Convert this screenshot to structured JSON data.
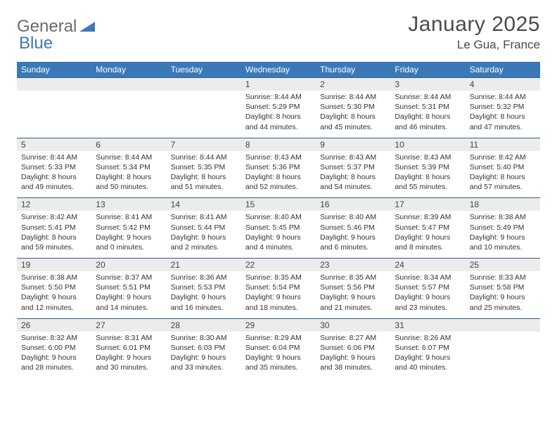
{
  "logo": {
    "text1": "General",
    "text2": "Blue"
  },
  "title": "January 2025",
  "location": "Le Gua, France",
  "colors": {
    "header_bg": "#3b78b8",
    "header_text": "#ffffff",
    "daynum_bg": "#ececec",
    "rule": "#2f5f94",
    "text": "#333333",
    "logo_gray": "#6a6a6a",
    "logo_blue": "#3b78b8"
  },
  "weekdays": [
    "Sunday",
    "Monday",
    "Tuesday",
    "Wednesday",
    "Thursday",
    "Friday",
    "Saturday"
  ],
  "weeks": [
    [
      null,
      null,
      null,
      {
        "n": "1",
        "sr": "Sunrise: 8:44 AM",
        "ss": "Sunset: 5:29 PM",
        "d1": "Daylight: 8 hours",
        "d2": "and 44 minutes."
      },
      {
        "n": "2",
        "sr": "Sunrise: 8:44 AM",
        "ss": "Sunset: 5:30 PM",
        "d1": "Daylight: 8 hours",
        "d2": "and 45 minutes."
      },
      {
        "n": "3",
        "sr": "Sunrise: 8:44 AM",
        "ss": "Sunset: 5:31 PM",
        "d1": "Daylight: 8 hours",
        "d2": "and 46 minutes."
      },
      {
        "n": "4",
        "sr": "Sunrise: 8:44 AM",
        "ss": "Sunset: 5:32 PM",
        "d1": "Daylight: 8 hours",
        "d2": "and 47 minutes."
      }
    ],
    [
      {
        "n": "5",
        "sr": "Sunrise: 8:44 AM",
        "ss": "Sunset: 5:33 PM",
        "d1": "Daylight: 8 hours",
        "d2": "and 49 minutes."
      },
      {
        "n": "6",
        "sr": "Sunrise: 8:44 AM",
        "ss": "Sunset: 5:34 PM",
        "d1": "Daylight: 8 hours",
        "d2": "and 50 minutes."
      },
      {
        "n": "7",
        "sr": "Sunrise: 8:44 AM",
        "ss": "Sunset: 5:35 PM",
        "d1": "Daylight: 8 hours",
        "d2": "and 51 minutes."
      },
      {
        "n": "8",
        "sr": "Sunrise: 8:43 AM",
        "ss": "Sunset: 5:36 PM",
        "d1": "Daylight: 8 hours",
        "d2": "and 52 minutes."
      },
      {
        "n": "9",
        "sr": "Sunrise: 8:43 AM",
        "ss": "Sunset: 5:37 PM",
        "d1": "Daylight: 8 hours",
        "d2": "and 54 minutes."
      },
      {
        "n": "10",
        "sr": "Sunrise: 8:43 AM",
        "ss": "Sunset: 5:39 PM",
        "d1": "Daylight: 8 hours",
        "d2": "and 55 minutes."
      },
      {
        "n": "11",
        "sr": "Sunrise: 8:42 AM",
        "ss": "Sunset: 5:40 PM",
        "d1": "Daylight: 8 hours",
        "d2": "and 57 minutes."
      }
    ],
    [
      {
        "n": "12",
        "sr": "Sunrise: 8:42 AM",
        "ss": "Sunset: 5:41 PM",
        "d1": "Daylight: 8 hours",
        "d2": "and 59 minutes."
      },
      {
        "n": "13",
        "sr": "Sunrise: 8:41 AM",
        "ss": "Sunset: 5:42 PM",
        "d1": "Daylight: 9 hours",
        "d2": "and 0 minutes."
      },
      {
        "n": "14",
        "sr": "Sunrise: 8:41 AM",
        "ss": "Sunset: 5:44 PM",
        "d1": "Daylight: 9 hours",
        "d2": "and 2 minutes."
      },
      {
        "n": "15",
        "sr": "Sunrise: 8:40 AM",
        "ss": "Sunset: 5:45 PM",
        "d1": "Daylight: 9 hours",
        "d2": "and 4 minutes."
      },
      {
        "n": "16",
        "sr": "Sunrise: 8:40 AM",
        "ss": "Sunset: 5:46 PM",
        "d1": "Daylight: 9 hours",
        "d2": "and 6 minutes."
      },
      {
        "n": "17",
        "sr": "Sunrise: 8:39 AM",
        "ss": "Sunset: 5:47 PM",
        "d1": "Daylight: 9 hours",
        "d2": "and 8 minutes."
      },
      {
        "n": "18",
        "sr": "Sunrise: 8:38 AM",
        "ss": "Sunset: 5:49 PM",
        "d1": "Daylight: 9 hours",
        "d2": "and 10 minutes."
      }
    ],
    [
      {
        "n": "19",
        "sr": "Sunrise: 8:38 AM",
        "ss": "Sunset: 5:50 PM",
        "d1": "Daylight: 9 hours",
        "d2": "and 12 minutes."
      },
      {
        "n": "20",
        "sr": "Sunrise: 8:37 AM",
        "ss": "Sunset: 5:51 PM",
        "d1": "Daylight: 9 hours",
        "d2": "and 14 minutes."
      },
      {
        "n": "21",
        "sr": "Sunrise: 8:36 AM",
        "ss": "Sunset: 5:53 PM",
        "d1": "Daylight: 9 hours",
        "d2": "and 16 minutes."
      },
      {
        "n": "22",
        "sr": "Sunrise: 8:35 AM",
        "ss": "Sunset: 5:54 PM",
        "d1": "Daylight: 9 hours",
        "d2": "and 18 minutes."
      },
      {
        "n": "23",
        "sr": "Sunrise: 8:35 AM",
        "ss": "Sunset: 5:56 PM",
        "d1": "Daylight: 9 hours",
        "d2": "and 21 minutes."
      },
      {
        "n": "24",
        "sr": "Sunrise: 8:34 AM",
        "ss": "Sunset: 5:57 PM",
        "d1": "Daylight: 9 hours",
        "d2": "and 23 minutes."
      },
      {
        "n": "25",
        "sr": "Sunrise: 8:33 AM",
        "ss": "Sunset: 5:58 PM",
        "d1": "Daylight: 9 hours",
        "d2": "and 25 minutes."
      }
    ],
    [
      {
        "n": "26",
        "sr": "Sunrise: 8:32 AM",
        "ss": "Sunset: 6:00 PM",
        "d1": "Daylight: 9 hours",
        "d2": "and 28 minutes."
      },
      {
        "n": "27",
        "sr": "Sunrise: 8:31 AM",
        "ss": "Sunset: 6:01 PM",
        "d1": "Daylight: 9 hours",
        "d2": "and 30 minutes."
      },
      {
        "n": "28",
        "sr": "Sunrise: 8:30 AM",
        "ss": "Sunset: 6:03 PM",
        "d1": "Daylight: 9 hours",
        "d2": "and 33 minutes."
      },
      {
        "n": "29",
        "sr": "Sunrise: 8:29 AM",
        "ss": "Sunset: 6:04 PM",
        "d1": "Daylight: 9 hours",
        "d2": "and 35 minutes."
      },
      {
        "n": "30",
        "sr": "Sunrise: 8:27 AM",
        "ss": "Sunset: 6:06 PM",
        "d1": "Daylight: 9 hours",
        "d2": "and 38 minutes."
      },
      {
        "n": "31",
        "sr": "Sunrise: 8:26 AM",
        "ss": "Sunset: 6:07 PM",
        "d1": "Daylight: 9 hours",
        "d2": "and 40 minutes."
      },
      null
    ]
  ]
}
